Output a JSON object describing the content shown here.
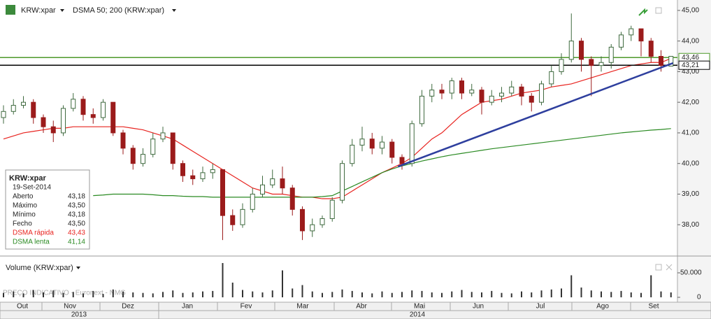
{
  "chart_data": {
    "type": "candlestick",
    "symbol": "KRW:xpar",
    "indicator": "DSMA 50; 200 (KRW:xpar)",
    "volume_title": "Volume (KRW:xpar)",
    "watermark": "PREÇO INDICATIVO - Euronext - NMG",
    "months": [
      "Out",
      "Nov",
      "Dez",
      "Jan",
      "Fev",
      "Mar",
      "Abr",
      "Mai",
      "Jun",
      "Jul",
      "Ago",
      "Set"
    ],
    "years": [
      "2013",
      "2014"
    ],
    "up_color": "#3f6a3f",
    "down_color": "#9b1b1b",
    "open": [
      41.5,
      41.7,
      41.9,
      42.0,
      41.5,
      41.2,
      41.0,
      41.8,
      42.1,
      41.6,
      41.5,
      42.0,
      41.0,
      40.5,
      40.0,
      40.3,
      40.8,
      41.0,
      40.0,
      39.6,
      39.5,
      39.7,
      39.8,
      38.3,
      38.0,
      38.5,
      39.0,
      39.3,
      39.5,
      39.2,
      38.5,
      37.8,
      38.0,
      38.2,
      38.8,
      40.0,
      40.6,
      40.8,
      40.5,
      40.7,
      40.2,
      40.0,
      41.3,
      42.2,
      42.4,
      42.3,
      42.7,
      42.3,
      42.4,
      42.0,
      42.2,
      42.3,
      42.5,
      42.2,
      42.0,
      42.6,
      43.0,
      43.4,
      44.0,
      43.4,
      43.2,
      43.3,
      43.8,
      44.2,
      44.4,
      44.0,
      43.5,
      43.18
    ],
    "high": [
      41.9,
      42.1,
      42.2,
      42.1,
      41.6,
      41.4,
      41.9,
      42.3,
      42.2,
      41.8,
      42.1,
      42.0,
      41.1,
      40.6,
      40.5,
      41.0,
      41.2,
      41.0,
      40.1,
      39.8,
      39.9,
      40.0,
      39.8,
      38.5,
      38.7,
      39.2,
      39.6,
      39.8,
      39.9,
      39.3,
      38.6,
      38.2,
      38.3,
      38.9,
      40.1,
      40.8,
      41.2,
      41.0,
      40.9,
      40.8,
      40.3,
      41.4,
      42.4,
      42.6,
      42.6,
      42.8,
      42.8,
      42.6,
      42.5,
      42.4,
      42.5,
      42.7,
      42.6,
      42.3,
      42.7,
      43.2,
      43.6,
      44.9,
      44.1,
      43.5,
      43.5,
      43.9,
      44.3,
      44.5,
      44.4,
      44.1,
      43.7,
      43.5
    ],
    "low": [
      41.3,
      41.6,
      41.8,
      41.3,
      41.0,
      40.7,
      40.9,
      41.7,
      41.4,
      41.3,
      41.4,
      40.9,
      40.3,
      39.8,
      39.9,
      40.2,
      40.7,
      39.8,
      39.4,
      39.3,
      39.4,
      39.5,
      37.5,
      37.8,
      37.9,
      38.4,
      38.9,
      39.2,
      39.0,
      38.3,
      37.5,
      37.6,
      37.9,
      38.1,
      38.7,
      39.9,
      40.4,
      40.3,
      40.3,
      40.0,
      39.8,
      39.9,
      41.2,
      42.0,
      42.1,
      42.1,
      42.1,
      42.2,
      41.6,
      41.9,
      42.0,
      42.2,
      41.9,
      41.7,
      41.9,
      42.5,
      42.9,
      43.3,
      43.0,
      42.2,
      43.0,
      43.1,
      43.7,
      44.0,
      43.5,
      43.3,
      43.0,
      43.18
    ],
    "close": [
      41.7,
      41.9,
      42.0,
      41.5,
      41.2,
      41.0,
      41.8,
      42.1,
      41.6,
      41.5,
      42.0,
      41.0,
      40.5,
      40.0,
      40.3,
      40.8,
      41.0,
      40.0,
      39.6,
      39.5,
      39.7,
      39.8,
      38.3,
      38.0,
      38.5,
      39.0,
      39.3,
      39.5,
      39.2,
      38.5,
      37.8,
      38.0,
      38.2,
      38.8,
      40.0,
      40.6,
      40.8,
      40.5,
      40.7,
      40.2,
      40.0,
      41.3,
      42.2,
      42.4,
      42.3,
      42.7,
      42.3,
      42.4,
      42.0,
      42.2,
      42.3,
      42.5,
      42.2,
      42.0,
      42.6,
      43.0,
      43.4,
      44.0,
      43.4,
      43.2,
      43.3,
      43.8,
      44.2,
      44.4,
      44.0,
      43.5,
      43.2,
      43.5
    ],
    "volume": [
      9000,
      12000,
      8000,
      15000,
      10000,
      14000,
      9000,
      11000,
      8000,
      13000,
      7000,
      16000,
      12000,
      10000,
      9000,
      8000,
      11000,
      14000,
      9000,
      10000,
      12000,
      13000,
      70000,
      30000,
      15000,
      12000,
      10000,
      14000,
      55000,
      18000,
      25000,
      12000,
      9000,
      11000,
      16000,
      13000,
      10000,
      8000,
      12000,
      9000,
      11000,
      14000,
      13000,
      10000,
      9000,
      12000,
      15000,
      11000,
      10000,
      13000,
      9000,
      8000,
      12000,
      10000,
      14000,
      16000,
      18000,
      45000,
      20000,
      14000,
      12000,
      11000,
      13000,
      10000,
      9000,
      45000,
      12000,
      10000
    ],
    "series": [
      {
        "name": "DSMA rápida",
        "info_value": "43,43",
        "color": "#e8231f",
        "values": [
          40.8,
          40.9,
          41.0,
          41.05,
          41.1,
          41.15,
          41.15,
          41.2,
          41.2,
          41.2,
          41.2,
          41.2,
          41.2,
          41.15,
          41.1,
          41.0,
          40.9,
          40.8,
          40.6,
          40.4,
          40.2,
          40.0,
          39.8,
          39.6,
          39.4,
          39.2,
          39.1,
          39.0,
          39.0,
          38.95,
          38.9,
          38.9,
          38.85,
          38.85,
          38.9,
          39.1,
          39.3,
          39.5,
          39.7,
          39.85,
          40.0,
          40.2,
          40.5,
          40.8,
          41.0,
          41.3,
          41.6,
          41.8,
          42.0,
          42.05,
          42.1,
          42.2,
          42.3,
          42.35,
          42.4,
          42.5,
          42.55,
          42.6,
          42.7,
          42.8,
          42.9,
          43.0,
          43.1,
          43.2,
          43.25,
          43.3,
          43.3,
          43.43
        ]
      },
      {
        "name": "DSMA lenta",
        "info_value": "41,14",
        "color": "#2a8a22",
        "values": [
          null,
          null,
          null,
          null,
          null,
          null,
          null,
          null,
          null,
          38.95,
          38.97,
          39.0,
          39.0,
          39.0,
          39.0,
          38.98,
          38.95,
          38.95,
          38.93,
          38.92,
          38.92,
          38.9,
          38.9,
          38.9,
          38.9,
          38.9,
          38.9,
          38.9,
          38.9,
          38.9,
          38.9,
          38.9,
          38.92,
          38.95,
          39.1,
          39.25,
          39.4,
          39.55,
          39.7,
          39.82,
          39.92,
          40.0,
          40.08,
          40.15,
          40.22,
          40.28,
          40.33,
          40.38,
          40.43,
          40.48,
          40.52,
          40.56,
          40.6,
          40.64,
          40.68,
          40.72,
          40.76,
          40.8,
          40.84,
          40.88,
          40.92,
          40.96,
          41.0,
          41.03,
          41.06,
          41.09,
          41.11,
          41.14
        ]
      }
    ],
    "trendline": {
      "x": [
        39.6,
        67.2
      ],
      "y": [
        39.9,
        43.28
      ],
      "color": "#2e3f9e"
    },
    "hlines": [
      {
        "value": 43.46,
        "label": "43,46",
        "color": "#4e9a2a"
      },
      {
        "value": 43.21,
        "label": "43,21",
        "color": "#000000"
      }
    ],
    "ylim": [
      37.0,
      45.34
    ],
    "yticks": [
      {
        "value": 38,
        "label": "38,00"
      },
      {
        "value": 39,
        "label": "39,00"
      },
      {
        "value": 40,
        "label": "40,00"
      },
      {
        "value": 41,
        "label": "41,00"
      },
      {
        "value": 42,
        "label": "42,00"
      },
      {
        "value": 43,
        "label": "43,00"
      },
      {
        "value": 44,
        "label": "44,00"
      },
      {
        "value": 45,
        "label": "45,00"
      }
    ],
    "volume_ylim": [
      0,
      80000
    ],
    "volume_yticks": [
      0,
      {
        "value": 50000,
        "label": "50.000"
      }
    ],
    "info": {
      "title": "KRW:xpar",
      "date": "19-Set-2014",
      "rows": [
        {
          "label": "Aberto",
          "value": "43,18"
        },
        {
          "label": "Máximo",
          "value": "43,50"
        },
        {
          "label": "Mínimo",
          "value": "43,18"
        },
        {
          "label": "Fecho",
          "value": "43,50"
        }
      ]
    }
  }
}
